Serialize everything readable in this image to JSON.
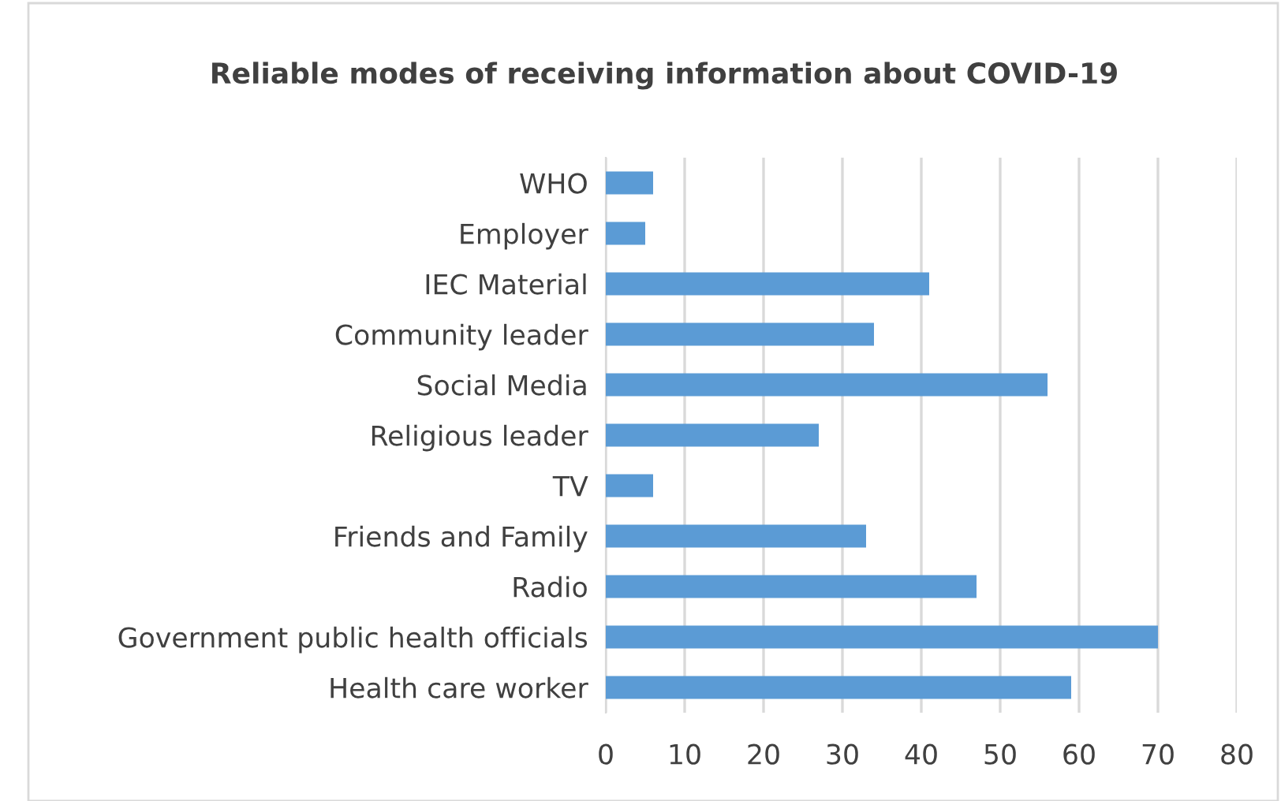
{
  "chart_data": {
    "type": "bar",
    "orientation": "horizontal",
    "title": "Reliable modes of receiving information about COVID-19",
    "categories": [
      "WHO",
      "Employer",
      "IEC Material",
      "Community leader",
      "Social Media",
      "Religious leader",
      "TV",
      "Friends and Family",
      "Radio",
      "Government public health officials",
      "Health care worker"
    ],
    "values": [
      6,
      5,
      41,
      34,
      56,
      27,
      6,
      33,
      47,
      70,
      59
    ],
    "color": "#5b9bd5",
    "xlim": [
      0,
      80
    ],
    "xticks": [
      0,
      10,
      20,
      30,
      40,
      50,
      60,
      70,
      80
    ],
    "grid": "x",
    "legend": false
  }
}
